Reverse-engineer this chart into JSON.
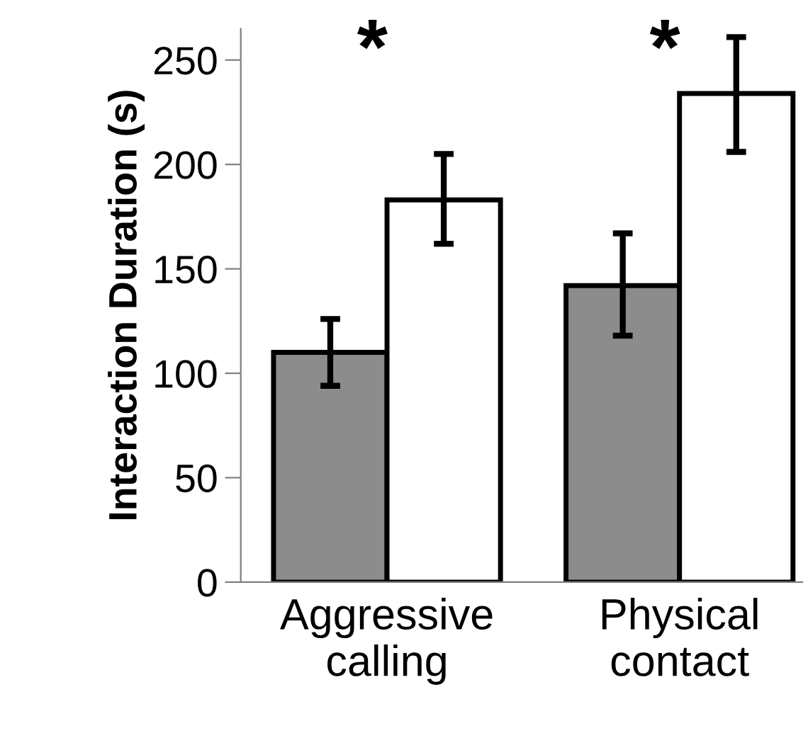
{
  "chart_data": {
    "type": "bar",
    "ylabel": "Interaction Duration (s)",
    "categories": [
      "Aggressive\ncalling",
      "Physical\ncontact"
    ],
    "series": [
      {
        "color": "#8c8c8c",
        "values": [
          110,
          142
        ],
        "errors": [
          [
            94,
            126
          ],
          [
            118,
            167
          ]
        ]
      },
      {
        "color": "#ffffff",
        "values": [
          183,
          234
        ],
        "errors": [
          [
            162,
            205
          ],
          [
            206,
            261
          ]
        ]
      }
    ],
    "ylim": [
      0,
      265
    ],
    "yticks": [
      0,
      50,
      100,
      150,
      200,
      250
    ],
    "grid": false,
    "legend": false,
    "annotations": [
      "*",
      "*"
    ]
  }
}
